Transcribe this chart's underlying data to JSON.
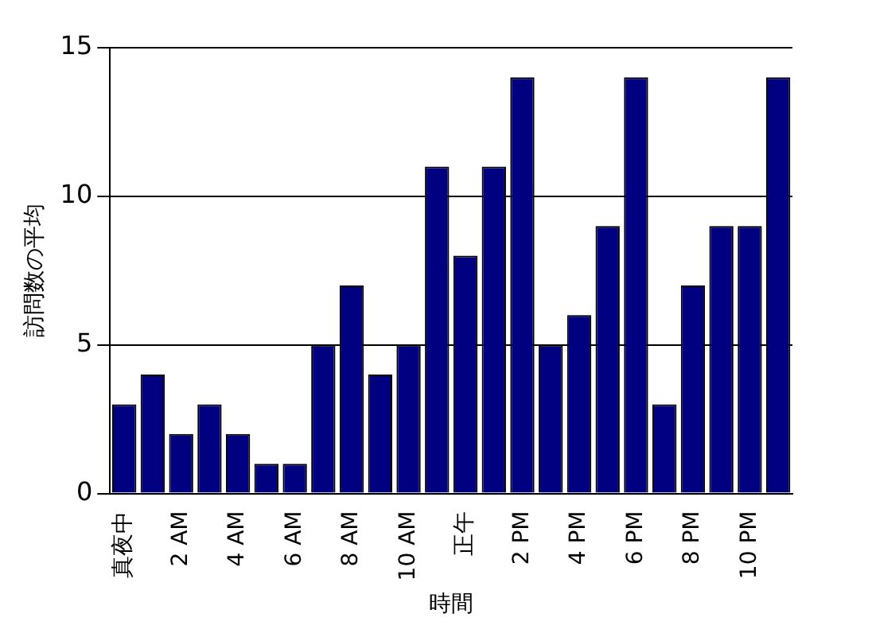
{
  "chart_data": {
    "type": "bar",
    "xlabel": "時間",
    "ylabel": "訪問数の平均",
    "categories": [
      "真夜中",
      null,
      "2 AM",
      null,
      "4 AM",
      null,
      "6 AM",
      null,
      "8 AM",
      null,
      "10 AM",
      null,
      "正午",
      null,
      "2 PM",
      null,
      "4 PM",
      null,
      "6 PM",
      null,
      "8 PM",
      null,
      "10 PM",
      null
    ],
    "values": [
      3,
      4,
      2,
      3,
      2,
      1,
      1,
      5,
      7,
      4,
      5,
      11,
      8,
      11,
      14,
      5,
      6,
      9,
      14,
      3,
      7,
      9,
      9,
      14
    ],
    "color": "#000080",
    "ylim": [
      0,
      15
    ],
    "yticks": [
      0,
      5,
      10,
      15
    ],
    "grid": "y",
    "legend": false
  }
}
